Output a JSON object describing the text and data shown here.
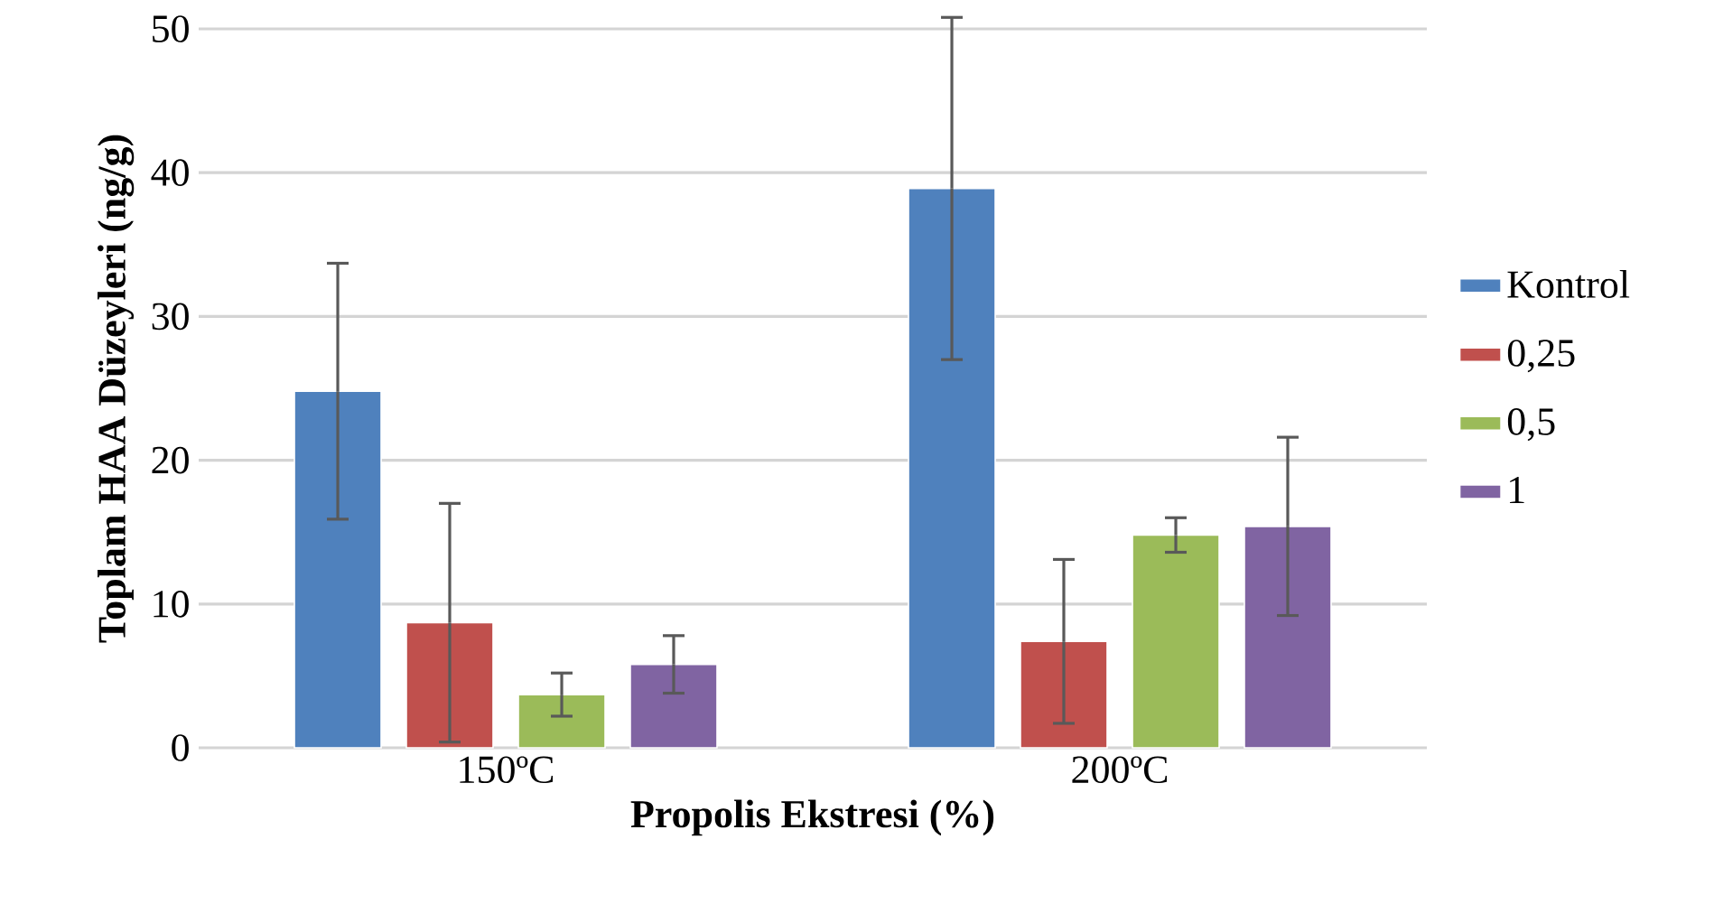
{
  "chart_data": {
    "type": "bar",
    "xlabel": "Propolis Ekstresi (%)",
    "ylabel": "Toplam HAA Düzeyleri (ng/g)",
    "categories": [
      "150ºC",
      "200ºC"
    ],
    "series": [
      {
        "name": "Kontrol",
        "color": "#4f81bd",
        "values": [
          24.8,
          38.9
        ],
        "errors": [
          8.9,
          11.9
        ]
      },
      {
        "name": "0,25",
        "color": "#c0504d",
        "values": [
          8.7,
          7.4
        ],
        "errors": [
          8.3,
          5.7
        ]
      },
      {
        "name": "0,5",
        "color": "#9bbb59",
        "values": [
          3.7,
          14.8
        ],
        "errors": [
          1.5,
          1.2
        ]
      },
      {
        "name": "1",
        "color": "#8064a2",
        "values": [
          5.8,
          15.4
        ],
        "errors": [
          2.0,
          6.2
        ]
      }
    ],
    "ylim": [
      0,
      50
    ],
    "yticks": [
      0,
      10,
      20,
      30,
      40,
      50
    ],
    "grid": "y",
    "legend": "right"
  }
}
